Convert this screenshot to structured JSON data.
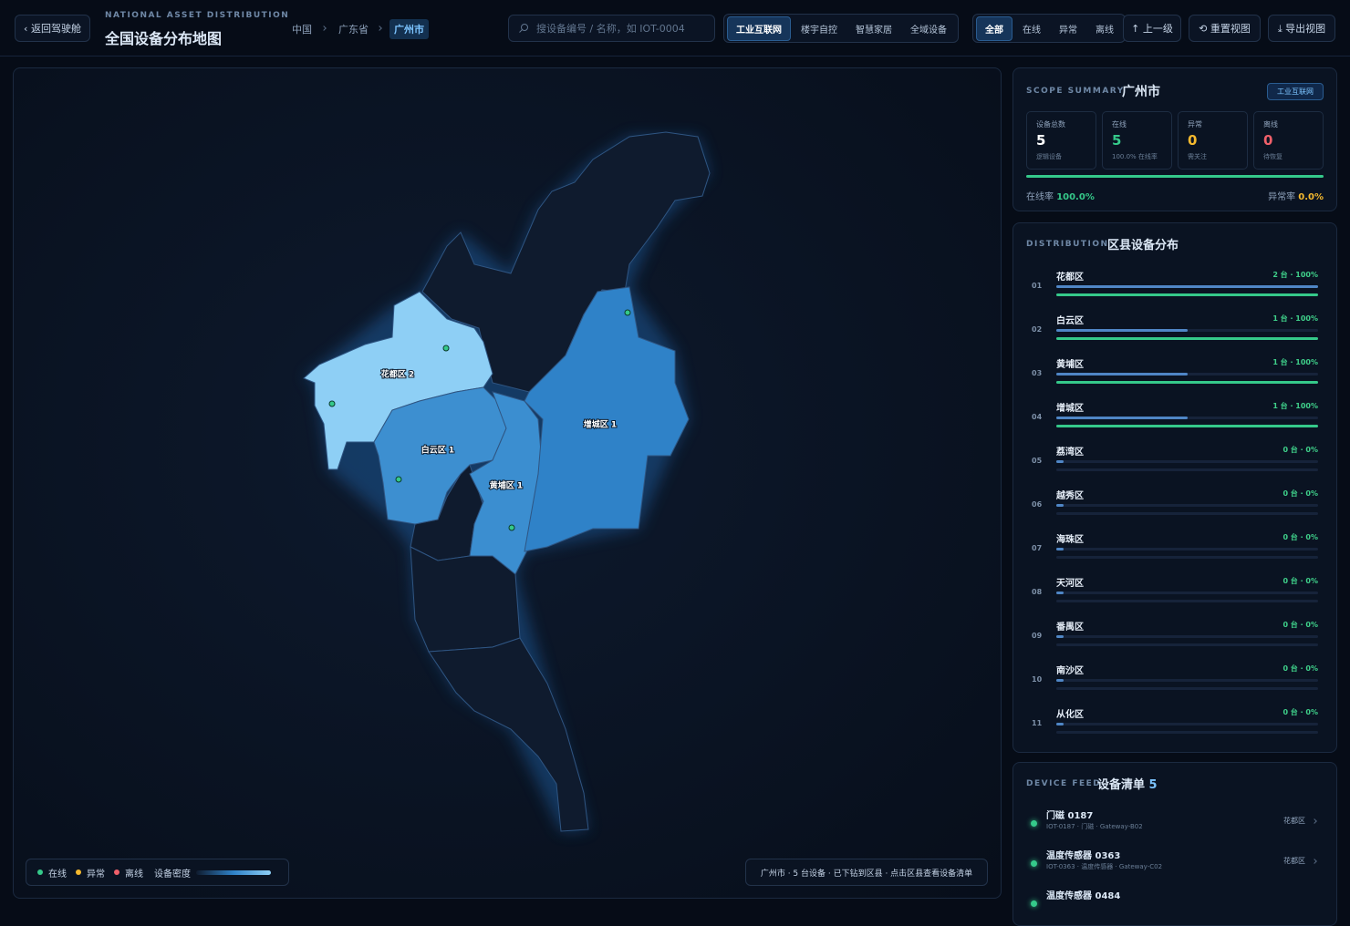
{
  "header": {
    "back": "‹ 返回驾驶舱",
    "eyebrow": "NATIONAL ASSET DISTRIBUTION",
    "title": "全国设备分布地图",
    "breadcrumb": [
      "中国",
      "广东省",
      "广州市"
    ],
    "search_placeholder": "搜设备编号 / 名称，如 IOT-0004",
    "scenes": [
      "工业互联网",
      "楼宇自控",
      "智慧家居",
      "全域设备"
    ],
    "statuses": [
      "全部",
      "在线",
      "异常",
      "离线"
    ],
    "actions": [
      "↑ 上一级",
      "⟲ 重置视图",
      "⤓ 导出视图"
    ]
  },
  "map": {
    "regions": [
      "花都区 2",
      "白云区 1",
      "黄埔区 1",
      "增城区 1"
    ],
    "legend": [
      "在线",
      "异常",
      "离线",
      "设备密度"
    ],
    "hint": "广州市 · 5 台设备 · 已下钻到区县 · 点击区县查看设备清单"
  },
  "summary": {
    "eyebrow": "SCOPE SUMMARY",
    "title": "广州市",
    "tag": "工业互联网",
    "stats": [
      {
        "label": "设备总数",
        "value": "5",
        "sub": "逻辑设备"
      },
      {
        "label": "在线",
        "value": "5",
        "sub": "100.0% 在线率"
      },
      {
        "label": "异常",
        "value": "0",
        "sub": "需关注"
      },
      {
        "label": "离线",
        "value": "0",
        "sub": "待恢复"
      }
    ],
    "online_rate_label": "在线率",
    "online_rate": "100.0%",
    "abnormal_rate_label": "异常率",
    "abnormal_rate": "0.0%"
  },
  "distribution": {
    "eyebrow": "DISTRIBUTION",
    "title": "区县设备分布",
    "rows": [
      {
        "rank": "01",
        "name": "花都区",
        "label": "2 台 · 100%",
        "count": 2,
        "online_pct": 100
      },
      {
        "rank": "02",
        "name": "白云区",
        "label": "1 台 · 100%",
        "count": 1,
        "online_pct": 100
      },
      {
        "rank": "03",
        "name": "黄埔区",
        "label": "1 台 · 100%",
        "count": 1,
        "online_pct": 100
      },
      {
        "rank": "04",
        "name": "增城区",
        "label": "1 台 · 100%",
        "count": 1,
        "online_pct": 100
      },
      {
        "rank": "05",
        "name": "荔湾区",
        "label": "0 台 · 0%",
        "count": 0,
        "online_pct": 0
      },
      {
        "rank": "06",
        "name": "越秀区",
        "label": "0 台 · 0%",
        "count": 0,
        "online_pct": 0
      },
      {
        "rank": "07",
        "name": "海珠区",
        "label": "0 台 · 0%",
        "count": 0,
        "online_pct": 0
      },
      {
        "rank": "08",
        "name": "天河区",
        "label": "0 台 · 0%",
        "count": 0,
        "online_pct": 0
      },
      {
        "rank": "09",
        "name": "番禺区",
        "label": "0 台 · 0%",
        "count": 0,
        "online_pct": 0
      },
      {
        "rank": "10",
        "name": "南沙区",
        "label": "0 台 · 0%",
        "count": 0,
        "online_pct": 0
      },
      {
        "rank": "11",
        "name": "从化区",
        "label": "0 台 · 0%",
        "count": 0,
        "online_pct": 0
      }
    ]
  },
  "feed": {
    "eyebrow": "DEVICE FEED",
    "title": "设备清单",
    "count": "5",
    "items": [
      {
        "name": "门磁 0187",
        "meta": "IOT-0187 · 门磁 · Gateway-B02",
        "region": "花都区"
      },
      {
        "name": "温度传感器 0363",
        "meta": "IOT-0363 · 温度传感器 · Gateway-C02",
        "region": "花都区"
      },
      {
        "name": "温度传感器 0484"
      }
    ]
  }
}
